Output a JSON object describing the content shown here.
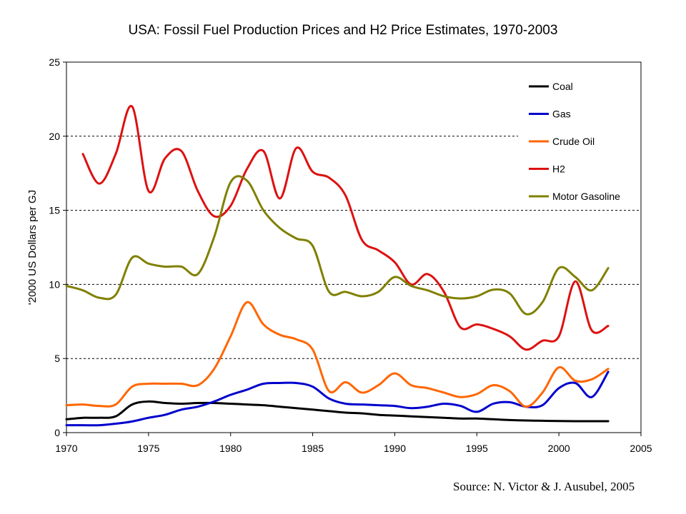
{
  "chart_data": {
    "type": "line",
    "title": "USA: Fossil Fuel Production Prices and H2 Price Estimates, 1970-2003",
    "xlabel": "",
    "ylabel": "'2000 US Dollars per GJ",
    "xlim": [
      1970,
      2005
    ],
    "ylim": [
      0,
      25
    ],
    "x_ticks": [
      1970,
      1975,
      1980,
      1985,
      1990,
      1995,
      2000,
      2005
    ],
    "y_ticks": [
      0,
      5,
      10,
      15,
      20,
      25
    ],
    "grid": "horizontal dashed",
    "legend_position": "top-right",
    "series": [
      {
        "name": "Coal",
        "color": "#000000",
        "points": [
          [
            1970,
            0.9
          ],
          [
            1971,
            1.0
          ],
          [
            1972,
            1.0
          ],
          [
            1973,
            1.1
          ],
          [
            1974,
            1.9
          ],
          [
            1975,
            2.1
          ],
          [
            1976,
            2.0
          ],
          [
            1977,
            1.95
          ],
          [
            1978,
            2.0
          ],
          [
            1979,
            2.0
          ],
          [
            1980,
            1.95
          ],
          [
            1981,
            1.9
          ],
          [
            1982,
            1.85
          ],
          [
            1983,
            1.75
          ],
          [
            1984,
            1.65
          ],
          [
            1985,
            1.55
          ],
          [
            1986,
            1.45
          ],
          [
            1987,
            1.35
          ],
          [
            1988,
            1.3
          ],
          [
            1989,
            1.2
          ],
          [
            1990,
            1.15
          ],
          [
            1991,
            1.1
          ],
          [
            1992,
            1.05
          ],
          [
            1993,
            1.0
          ],
          [
            1994,
            0.95
          ],
          [
            1995,
            0.95
          ],
          [
            1996,
            0.9
          ],
          [
            1997,
            0.85
          ],
          [
            1998,
            0.82
          ],
          [
            1999,
            0.8
          ],
          [
            2000,
            0.78
          ],
          [
            2001,
            0.77
          ],
          [
            2002,
            0.77
          ],
          [
            2003,
            0.77
          ]
        ]
      },
      {
        "name": "Gas",
        "color": "#0000cc",
        "points": [
          [
            1970,
            0.5
          ],
          [
            1971,
            0.5
          ],
          [
            1972,
            0.5
          ],
          [
            1973,
            0.6
          ],
          [
            1974,
            0.75
          ],
          [
            1975,
            1.0
          ],
          [
            1976,
            1.2
          ],
          [
            1977,
            1.55
          ],
          [
            1978,
            1.75
          ],
          [
            1979,
            2.1
          ],
          [
            1980,
            2.55
          ],
          [
            1981,
            2.9
          ],
          [
            1982,
            3.3
          ],
          [
            1983,
            3.35
          ],
          [
            1984,
            3.35
          ],
          [
            1985,
            3.1
          ],
          [
            1986,
            2.3
          ],
          [
            1987,
            1.95
          ],
          [
            1988,
            1.9
          ],
          [
            1989,
            1.85
          ],
          [
            1990,
            1.8
          ],
          [
            1991,
            1.65
          ],
          [
            1992,
            1.75
          ],
          [
            1993,
            1.95
          ],
          [
            1994,
            1.8
          ],
          [
            1995,
            1.4
          ],
          [
            1996,
            1.95
          ],
          [
            1997,
            2.05
          ],
          [
            1998,
            1.75
          ],
          [
            1999,
            1.85
          ],
          [
            2000,
            3.0
          ],
          [
            2001,
            3.35
          ],
          [
            2002,
            2.4
          ],
          [
            2003,
            4.1
          ]
        ]
      },
      {
        "name": "Crude Oil",
        "color": "#ff6600",
        "points": [
          [
            1970,
            1.85
          ],
          [
            1971,
            1.9
          ],
          [
            1972,
            1.8
          ],
          [
            1973,
            1.9
          ],
          [
            1974,
            3.1
          ],
          [
            1975,
            3.3
          ],
          [
            1976,
            3.3
          ],
          [
            1977,
            3.3
          ],
          [
            1978,
            3.2
          ],
          [
            1979,
            4.3
          ],
          [
            1980,
            6.5
          ],
          [
            1981,
            8.8
          ],
          [
            1982,
            7.3
          ],
          [
            1983,
            6.6
          ],
          [
            1984,
            6.3
          ],
          [
            1985,
            5.6
          ],
          [
            1986,
            2.8
          ],
          [
            1987,
            3.4
          ],
          [
            1988,
            2.7
          ],
          [
            1989,
            3.2
          ],
          [
            1990,
            4.0
          ],
          [
            1991,
            3.2
          ],
          [
            1992,
            3.0
          ],
          [
            1993,
            2.7
          ],
          [
            1994,
            2.4
          ],
          [
            1995,
            2.6
          ],
          [
            1996,
            3.2
          ],
          [
            1997,
            2.8
          ],
          [
            1998,
            1.75
          ],
          [
            1999,
            2.7
          ],
          [
            2000,
            4.4
          ],
          [
            2001,
            3.5
          ],
          [
            2002,
            3.6
          ],
          [
            2003,
            4.3
          ]
        ]
      },
      {
        "name": "H2",
        "color": "#dd1111",
        "points": [
          [
            1971,
            18.8
          ],
          [
            1972,
            16.8
          ],
          [
            1973,
            18.8
          ],
          [
            1974,
            22.0
          ],
          [
            1975,
            16.3
          ],
          [
            1976,
            18.5
          ],
          [
            1977,
            19.0
          ],
          [
            1978,
            16.3
          ],
          [
            1979,
            14.6
          ],
          [
            1980,
            15.3
          ],
          [
            1981,
            17.8
          ],
          [
            1982,
            19.0
          ],
          [
            1983,
            15.8
          ],
          [
            1984,
            19.2
          ],
          [
            1985,
            17.6
          ],
          [
            1986,
            17.2
          ],
          [
            1987,
            16.0
          ],
          [
            1988,
            13.0
          ],
          [
            1989,
            12.3
          ],
          [
            1990,
            11.5
          ],
          [
            1991,
            10.0
          ],
          [
            1992,
            10.7
          ],
          [
            1993,
            9.5
          ],
          [
            1994,
            7.1
          ],
          [
            1995,
            7.3
          ],
          [
            1996,
            7.0
          ],
          [
            1997,
            6.5
          ],
          [
            1998,
            5.6
          ],
          [
            1999,
            6.2
          ],
          [
            2000,
            6.5
          ],
          [
            2001,
            10.2
          ],
          [
            2002,
            6.9
          ],
          [
            2003,
            7.2
          ]
        ]
      },
      {
        "name": "Motor Gasoline",
        "color": "#808000",
        "points": [
          [
            1970,
            9.9
          ],
          [
            1971,
            9.6
          ],
          [
            1972,
            9.1
          ],
          [
            1973,
            9.3
          ],
          [
            1974,
            11.8
          ],
          [
            1975,
            11.4
          ],
          [
            1976,
            11.2
          ],
          [
            1977,
            11.2
          ],
          [
            1978,
            10.7
          ],
          [
            1979,
            13.2
          ],
          [
            1980,
            16.9
          ],
          [
            1981,
            17.0
          ],
          [
            1982,
            15.0
          ],
          [
            1983,
            13.8
          ],
          [
            1984,
            13.1
          ],
          [
            1985,
            12.6
          ],
          [
            1986,
            9.5
          ],
          [
            1987,
            9.5
          ],
          [
            1988,
            9.2
          ],
          [
            1989,
            9.5
          ],
          [
            1990,
            10.5
          ],
          [
            1991,
            9.9
          ],
          [
            1992,
            9.6
          ],
          [
            1993,
            9.2
          ],
          [
            1994,
            9.05
          ],
          [
            1995,
            9.2
          ],
          [
            1996,
            9.65
          ],
          [
            1997,
            9.4
          ],
          [
            1998,
            8.0
          ],
          [
            1999,
            8.8
          ],
          [
            2000,
            11.1
          ],
          [
            2001,
            10.5
          ],
          [
            2002,
            9.6
          ],
          [
            2003,
            11.1
          ]
        ]
      }
    ]
  },
  "source_text": "Source: N. Victor & J. Ausubel, 2005"
}
